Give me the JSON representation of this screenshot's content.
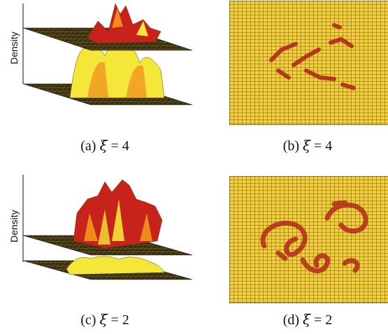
{
  "panels": [
    {
      "id": "a",
      "ylabel": "Density",
      "caption_prefix": "(a) ",
      "xi_symbol": "ξ",
      "caption_eq": " = 4"
    },
    {
      "id": "b",
      "caption_prefix": "(b) ",
      "xi_symbol": "ξ",
      "caption_eq": " = 4"
    },
    {
      "id": "c",
      "ylabel": "Density",
      "caption_prefix": "(c) ",
      "xi_symbol": "ξ",
      "caption_eq": " = 2"
    },
    {
      "id": "d",
      "caption_prefix": "(d) ",
      "xi_symbol": "ξ",
      "caption_eq": " = 2"
    }
  ],
  "colors": {
    "plane_dark": "#3b2f12",
    "plane_grid": "#b79b2a",
    "surface_yellow": "#f5e63a",
    "surface_orange": "#f08a1c",
    "surface_red": "#c8231a",
    "grid_bg": "#f2cf3a",
    "grid_line": "#5a4110",
    "blob": "#b22a1c"
  }
}
